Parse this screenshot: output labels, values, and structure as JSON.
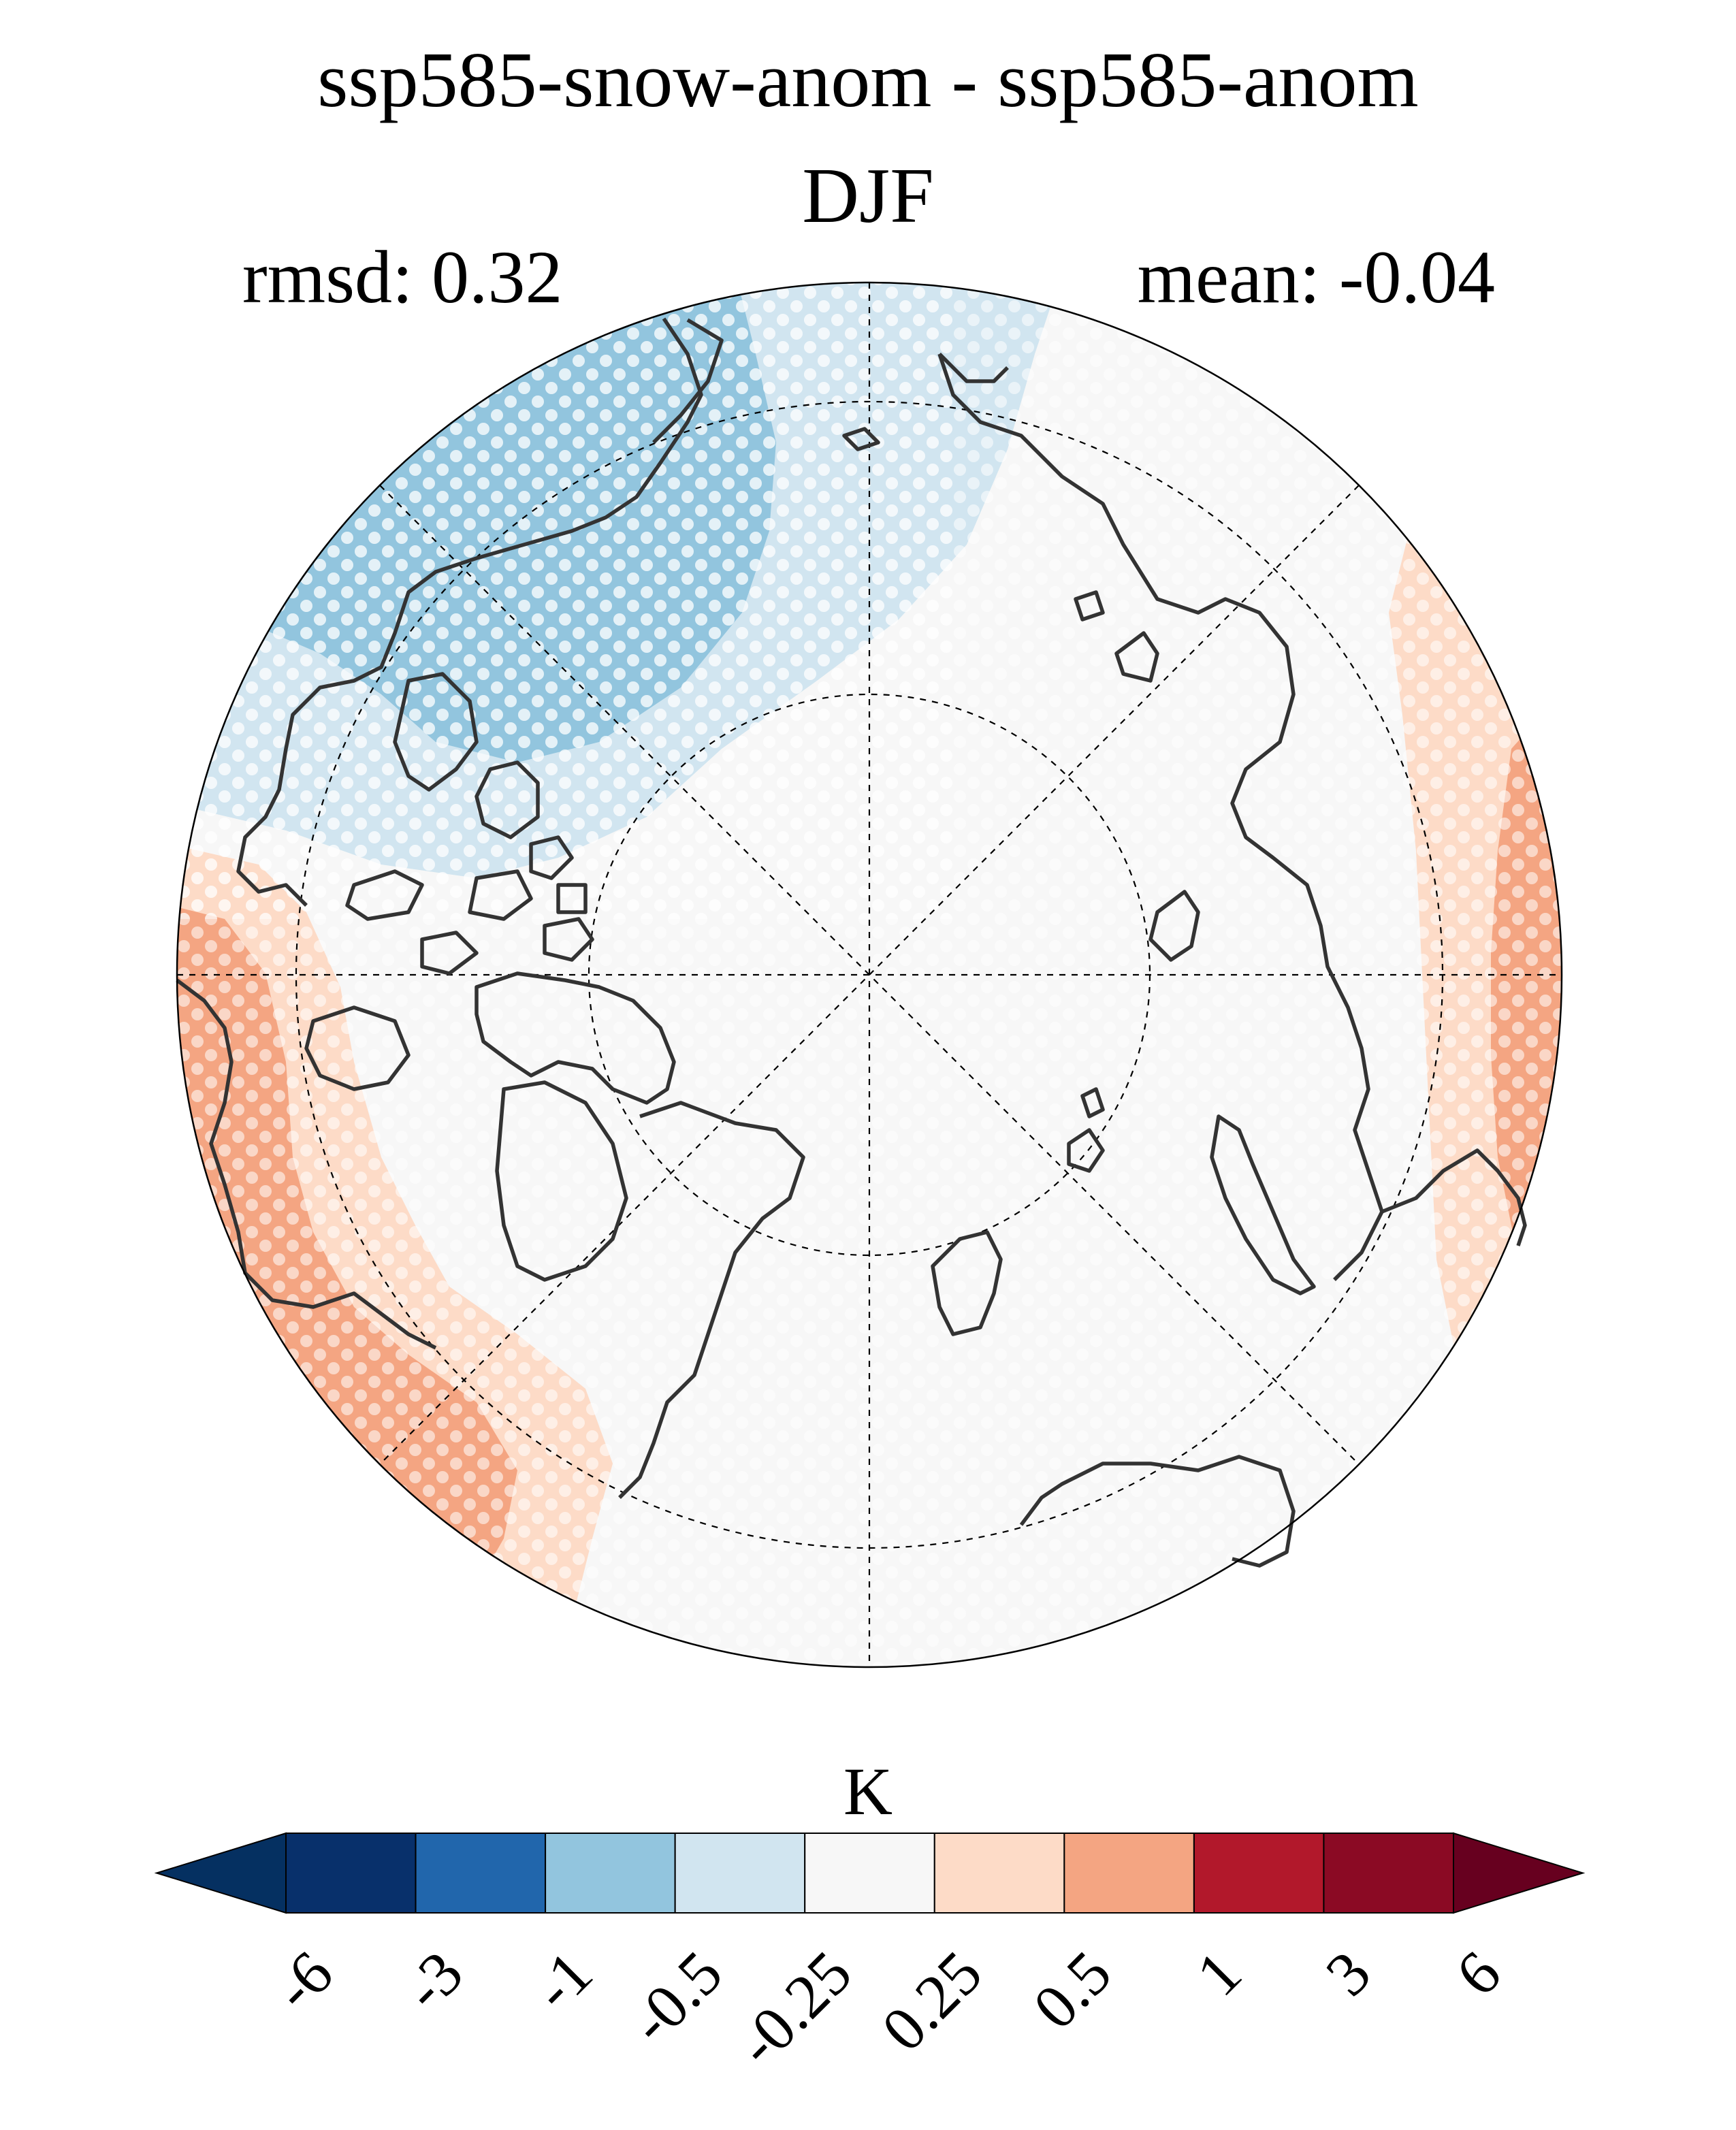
{
  "title": {
    "line1": "ssp585-snow-anom - ssp585-anom",
    "line2": "DJF"
  },
  "stats": {
    "rmsd_label": "rmsd: 0.32",
    "mean_label": "mean: -0.04"
  },
  "map": {
    "projection": "north-polar-stereographic",
    "stippling": "white dots mark significant regions",
    "regions": [
      {
        "name": "north-america-pacific-sector",
        "value_class": "-1 to -0.5",
        "color": "#92c5de"
      },
      {
        "name": "pacific-fringe",
        "value_class": "-0.5 to -0.25",
        "color": "#d1e5f0"
      },
      {
        "name": "arctic-ocean-eurasia",
        "value_class": "-0.25 to 0.25",
        "color": "#f7f7f7"
      },
      {
        "name": "east-asia-pacific-edge",
        "value_class": "0.25 to 0.5",
        "color": "#fddbc7"
      },
      {
        "name": "east-asia-pacific-core",
        "value_class": "0.5 to 1",
        "color": "#f4a582"
      },
      {
        "name": "north-atlantic-edge",
        "value_class": "0.25 to 0.5",
        "color": "#fddbc7"
      },
      {
        "name": "north-atlantic-core",
        "value_class": "0.5 to 1",
        "color": "#f4a582"
      }
    ]
  },
  "colorbar": {
    "unit": "K",
    "ticks": [
      "-6",
      "-3",
      "-1",
      "-0.5",
      "-0.25",
      "0.25",
      "0.5",
      "1",
      "3",
      "6"
    ],
    "colors": [
      "#053061",
      "#08306b",
      "#2166ac",
      "#92c5de",
      "#d1e5f0",
      "#f7f7f7",
      "#fddbc7",
      "#f4a582",
      "#b2182b",
      "#8b0a24",
      "#67001f"
    ],
    "extend": "both"
  }
}
